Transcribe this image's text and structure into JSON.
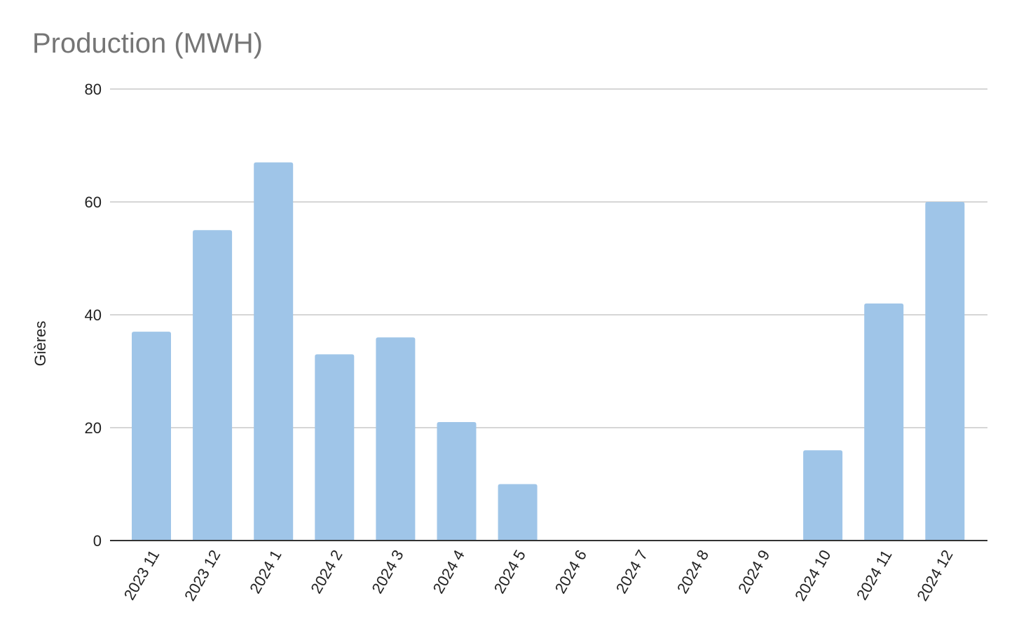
{
  "chart_data": {
    "type": "bar",
    "title": "Production (MWH)",
    "xlabel": "",
    "ylabel": "Gières",
    "categories": [
      "2023 11",
      "2023 12",
      "2024 1",
      "2024 2",
      "2024 3",
      "2024 4",
      "2024 5",
      "2024 6",
      "2024 7",
      "2024 8",
      "2024 9",
      "2024 10",
      "2024 11",
      "2024 12"
    ],
    "values": [
      37,
      55,
      67,
      33,
      36,
      21,
      10,
      0,
      0,
      0,
      0,
      16,
      42,
      60
    ],
    "ylim": [
      0,
      80
    ],
    "yticks": [
      "0",
      "20",
      "40",
      "60",
      "80"
    ],
    "grid": true,
    "legend": "none",
    "colors": {
      "bar": "#9fc5e8",
      "grid": "#c8c8c8",
      "baseline": "#333333",
      "title": "#757575",
      "text": "#222222"
    }
  }
}
